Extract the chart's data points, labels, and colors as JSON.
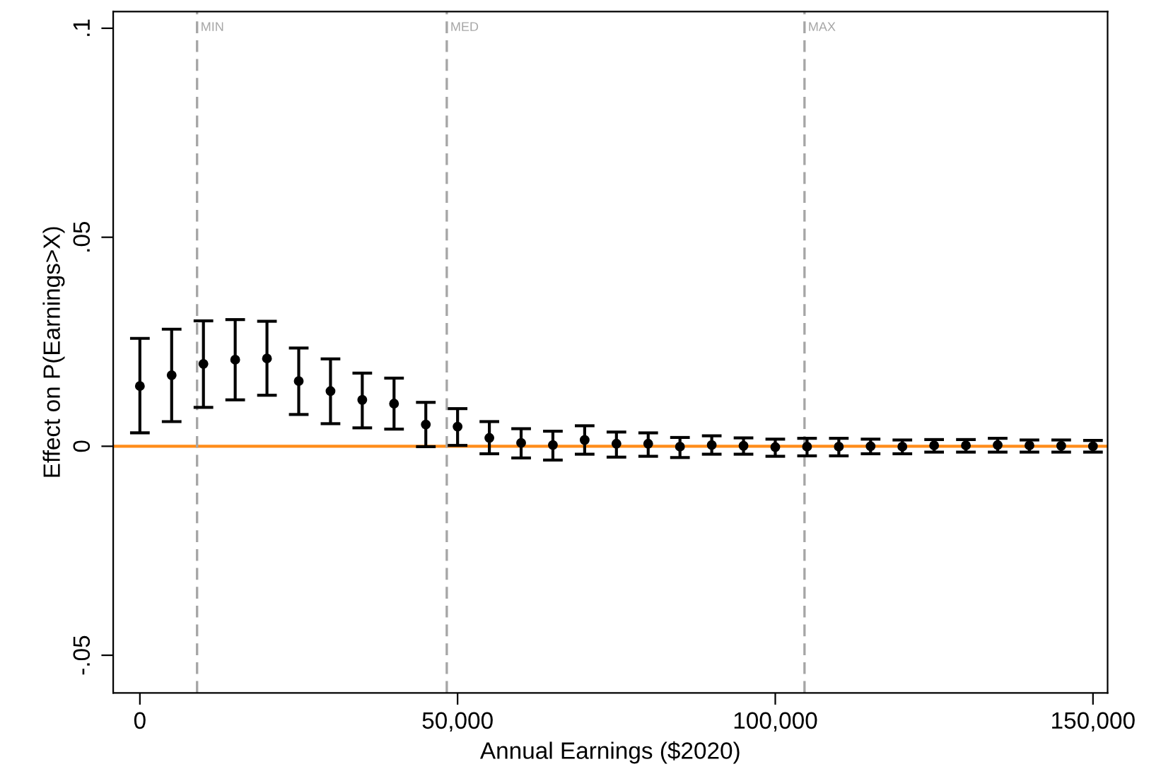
{
  "chart_data": {
    "type": "scatter",
    "xlabel": "Annual Earnings ($2020)",
    "ylabel": "Effect on P(Earnings>X)",
    "x": [
      0,
      5000,
      10000,
      15000,
      20000,
      25000,
      30000,
      35000,
      40000,
      45000,
      50000,
      55000,
      60000,
      65000,
      70000,
      75000,
      80000,
      85000,
      90000,
      95000,
      100000,
      105000,
      110000,
      115000,
      120000,
      125000,
      130000,
      135000,
      140000,
      145000,
      150000
    ],
    "series": [
      {
        "color": "#000000",
        "marker": "circle",
        "values": [
          0.0144,
          0.017,
          0.0197,
          0.0207,
          0.021,
          0.0156,
          0.0132,
          0.0111,
          0.0102,
          0.0052,
          0.0047,
          0.002,
          0.0008,
          0.0003,
          0.0015,
          0.0006,
          0.0006,
          -0.0001,
          0.0003,
          0.0001,
          -0.0002,
          -0.0001,
          -0.0001,
          0.0,
          -0.0001,
          0.0002,
          0.0002,
          0.0003,
          0.0002,
          0.0001,
          0.0
        ],
        "errors": [
          [
            0.0032,
            0.0258
          ],
          [
            0.0059,
            0.028
          ],
          [
            0.0093,
            0.03
          ],
          [
            0.0111,
            0.0303
          ],
          [
            0.0122,
            0.0299
          ],
          [
            0.0076,
            0.0235
          ],
          [
            0.0054,
            0.0209
          ],
          [
            0.0044,
            0.0175
          ],
          [
            0.0041,
            0.0163
          ],
          [
            -0.0001,
            0.0105
          ],
          [
            0.0002,
            0.009
          ],
          [
            -0.0018,
            0.0059
          ],
          [
            -0.0028,
            0.0042
          ],
          [
            -0.0033,
            0.0036
          ],
          [
            -0.0019,
            0.0049
          ],
          [
            -0.0026,
            0.0034
          ],
          [
            -0.0024,
            0.0032
          ],
          [
            -0.0027,
            0.0021
          ],
          [
            -0.0019,
            0.0025
          ],
          [
            -0.0019,
            0.002
          ],
          [
            -0.0024,
            0.0017
          ],
          [
            -0.0023,
            0.0019
          ],
          [
            -0.0023,
            0.0019
          ],
          [
            -0.0018,
            0.0017
          ],
          [
            -0.0018,
            0.0015
          ],
          [
            -0.0014,
            0.0016
          ],
          [
            -0.0014,
            0.0016
          ],
          [
            -0.0014,
            0.0019
          ],
          [
            -0.0014,
            0.0015
          ],
          [
            -0.0014,
            0.0015
          ],
          [
            -0.0014,
            0.0014
          ]
        ]
      }
    ],
    "xlim": [
      -4200,
      152300
    ],
    "xticks": [
      0,
      {
        "value": 50000,
        "label": "50,000"
      },
      {
        "value": 100000,
        "label": "100,000"
      },
      {
        "value": 150000,
        "label": "150,000"
      }
    ],
    "ylim": [
      -0.059,
      0.104
    ],
    "yticks": [
      {
        "value": -0.05,
        "label": "-.05"
      },
      0,
      {
        "value": 0.05,
        "label": ".05"
      },
      {
        "value": 0.1,
        "label": ".1"
      }
    ],
    "ref_lines": [
      {
        "axis": "y",
        "value": 0,
        "color": "#ff8c1a",
        "line_style": "solid"
      },
      {
        "axis": "x",
        "value": 9000,
        "label": "MIN",
        "color": "#a6a6a6",
        "line_style": "dashed"
      },
      {
        "axis": "x",
        "value": 48300,
        "label": "MED",
        "color": "#a6a6a6",
        "line_style": "dashed"
      },
      {
        "axis": "x",
        "value": 104600,
        "label": "MAX",
        "color": "#a6a6a6",
        "line_style": "dashed"
      }
    ],
    "grid": false,
    "legend": false
  }
}
